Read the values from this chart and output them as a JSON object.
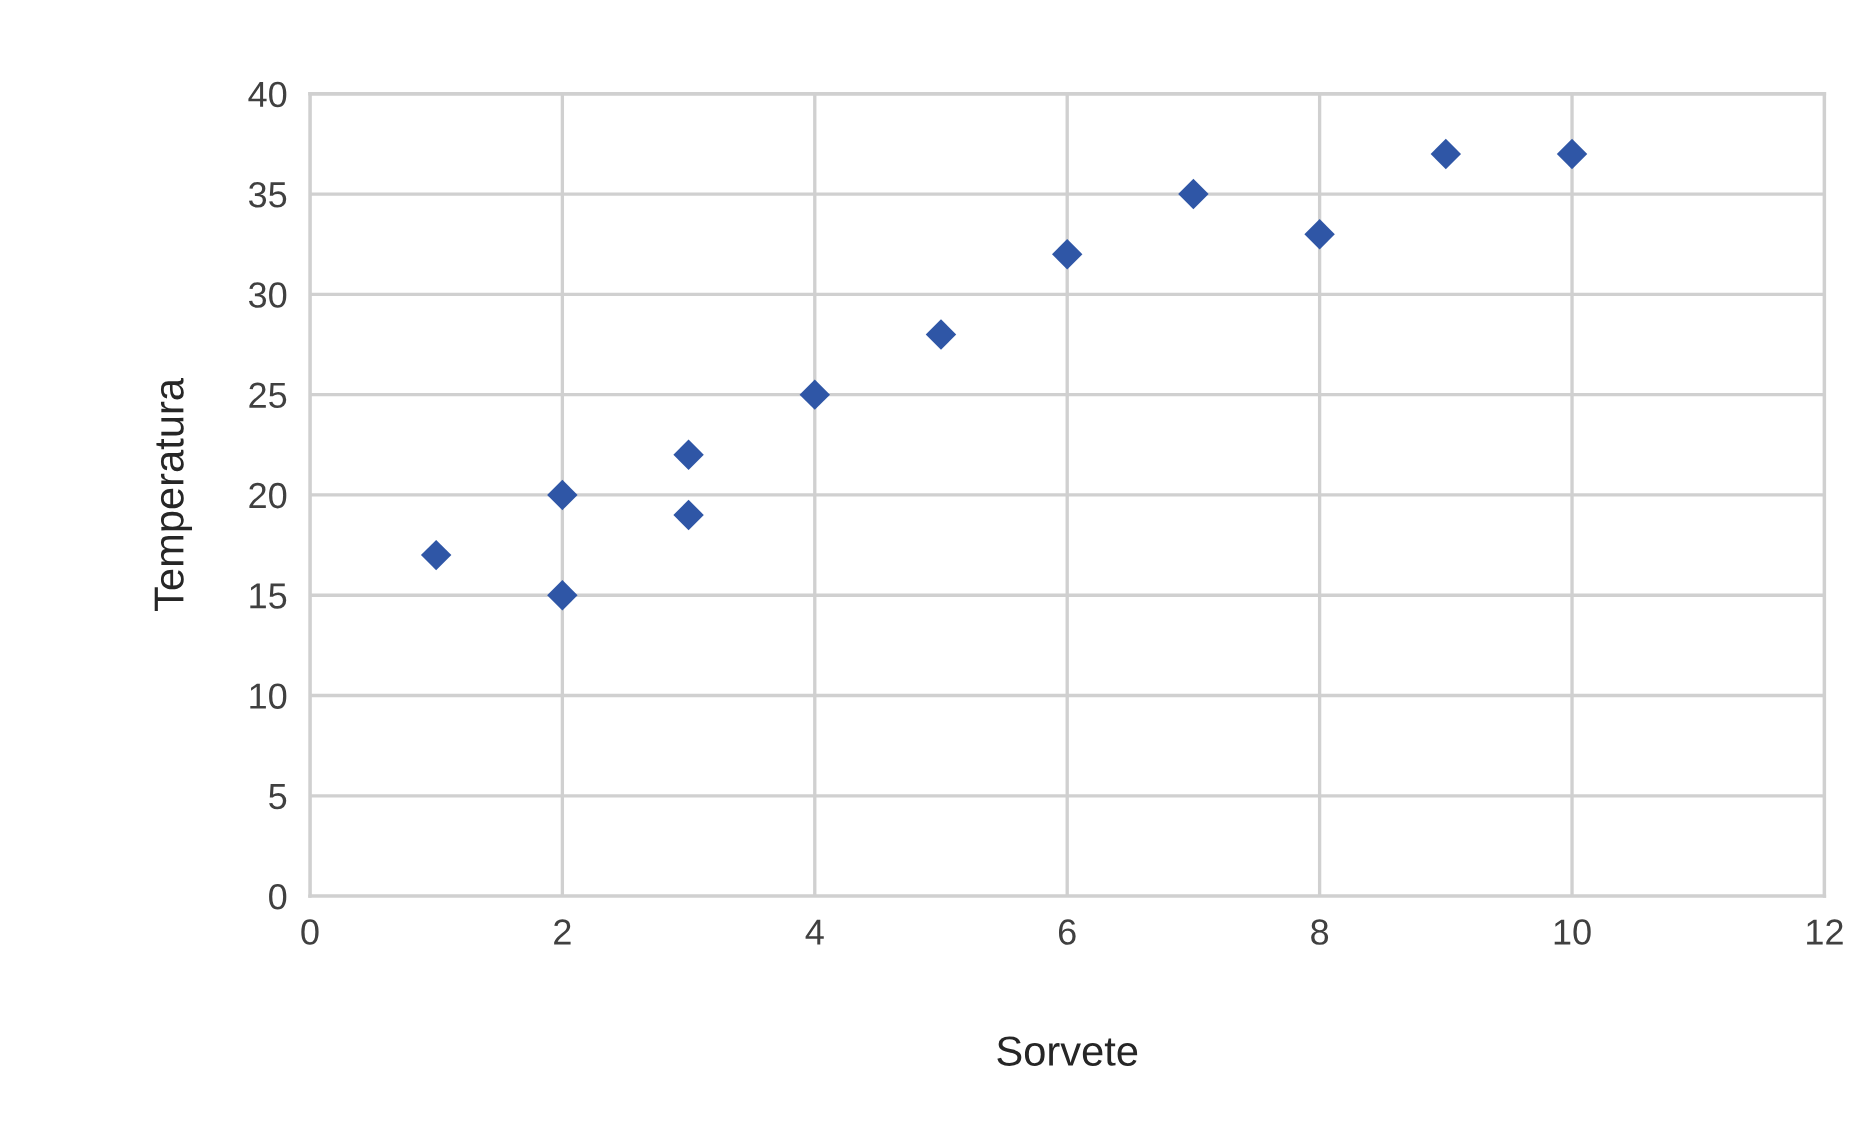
{
  "chart_data": {
    "type": "scatter",
    "xlabel": "Sorvete",
    "ylabel": "Temperatura",
    "x": [
      1,
      2,
      2,
      3,
      3,
      4,
      5,
      6,
      7,
      8,
      9,
      10
    ],
    "series": [
      {
        "color": "#2f56a6",
        "values": [
          17,
          20,
          15,
          22,
          19,
          25,
          28,
          32,
          35,
          33,
          37,
          37
        ]
      }
    ],
    "marker": "diamond",
    "grid": true,
    "xlim": [
      0,
      12
    ],
    "ylim": [
      0,
      40
    ],
    "xticks": [
      0,
      2,
      4,
      6,
      8,
      10,
      12
    ],
    "yticks": [
      0,
      5,
      10,
      15,
      20,
      25,
      30,
      35,
      40
    ]
  }
}
